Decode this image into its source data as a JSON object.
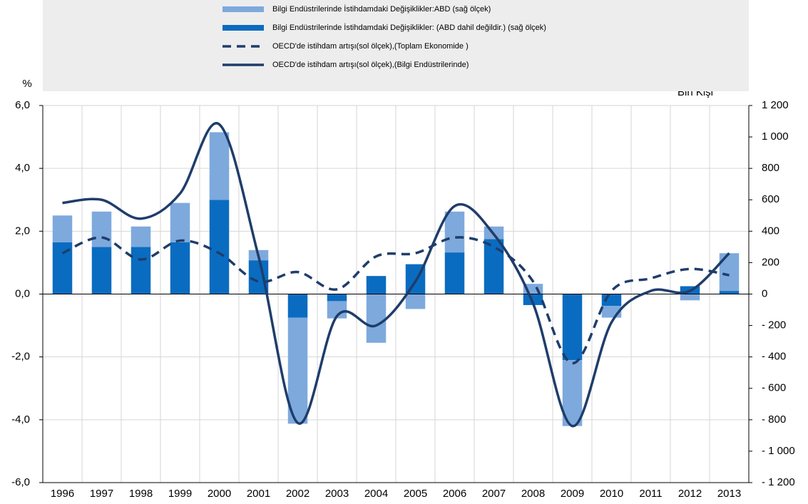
{
  "chart_data": {
    "type": "bar-line",
    "y_label": "%",
    "y2_label": "Bin Kişi",
    "categories": [
      "1996",
      "1997",
      "1998",
      "1999",
      "2000",
      "2001",
      "2002",
      "2003",
      "2004",
      "2005",
      "2006",
      "2007",
      "2008",
      "2009",
      "2010",
      "2011",
      "2012",
      "2013"
    ],
    "ylim": [
      -6,
      6
    ],
    "yticks": [
      {
        "value": -6,
        "label": "-6,0"
      },
      {
        "value": -4,
        "label": "-4,0"
      },
      {
        "value": -2,
        "label": "-2,0"
      },
      {
        "value": 0,
        "label": "0,0"
      },
      {
        "value": 2,
        "label": "2,0"
      },
      {
        "value": 4,
        "label": "4,0"
      },
      {
        "value": 6,
        "label": "6,0"
      }
    ],
    "y2lim": [
      -1200,
      1200
    ],
    "y2ticks": [
      {
        "value": -1200,
        "label": "- 1 200"
      },
      {
        "value": -1000,
        "label": "- 1 000"
      },
      {
        "value": -800,
        "label": "- 800"
      },
      {
        "value": -600,
        "label": "- 600"
      },
      {
        "value": -400,
        "label": "- 400"
      },
      {
        "value": -200,
        "label": "- 200"
      },
      0,
      200,
      400,
      600,
      800,
      {
        "value": 1000,
        "label": "1 000"
      },
      {
        "value": 1200,
        "label": "1 200"
      }
    ],
    "grid": true,
    "series": [
      {
        "name": "Bilgi Endüstrilerinde İstihdamdaki Değişiklikler:ABD (sağ ölçek)",
        "kind": "bar",
        "axis": "y2",
        "color": "#7ea9dd",
        "values": [
          170,
          225,
          130,
          250,
          430,
          65,
          -675,
          -110,
          -310,
          -95,
          260,
          80,
          65,
          -420,
          -75,
          0,
          -40,
          240
        ]
      },
      {
        "name": "Bilgi Endüstrilerinde İstihdamdaki Değişiklikler: (ABD dahil değildir.) (sağ ölçek)",
        "kind": "bar",
        "axis": "y2",
        "color": "#0a6cc0",
        "values": [
          330,
          300,
          300,
          330,
          600,
          215,
          -150,
          -45,
          115,
          190,
          265,
          350,
          -70,
          -420,
          -75,
          0,
          50,
          20
        ]
      },
      {
        "name": "OECD'de istihdam artışı(sol ölçek),(Toplam Ekonomide )",
        "kind": "line",
        "dash": true,
        "color": "#1f3d6b",
        "values": [
          1.3,
          1.8,
          1.1,
          1.7,
          1.3,
          0.4,
          0.7,
          0.15,
          1.2,
          1.3,
          1.8,
          1.5,
          0.4,
          -2.2,
          0.1,
          0.5,
          0.8,
          0.6
        ]
      },
      {
        "name": "OECD'de istihdam artışı(sol ölçek),(Bilgi Endüstrilerinde)",
        "kind": "line",
        "dash": false,
        "color": "#1f3d6b",
        "values": [
          2.9,
          3.0,
          2.4,
          3.2,
          5.4,
          1.2,
          -4.1,
          -0.7,
          -1.0,
          0.4,
          2.8,
          1.9,
          -0.3,
          -4.2,
          -0.9,
          0.1,
          0.1,
          1.3
        ]
      }
    ]
  }
}
